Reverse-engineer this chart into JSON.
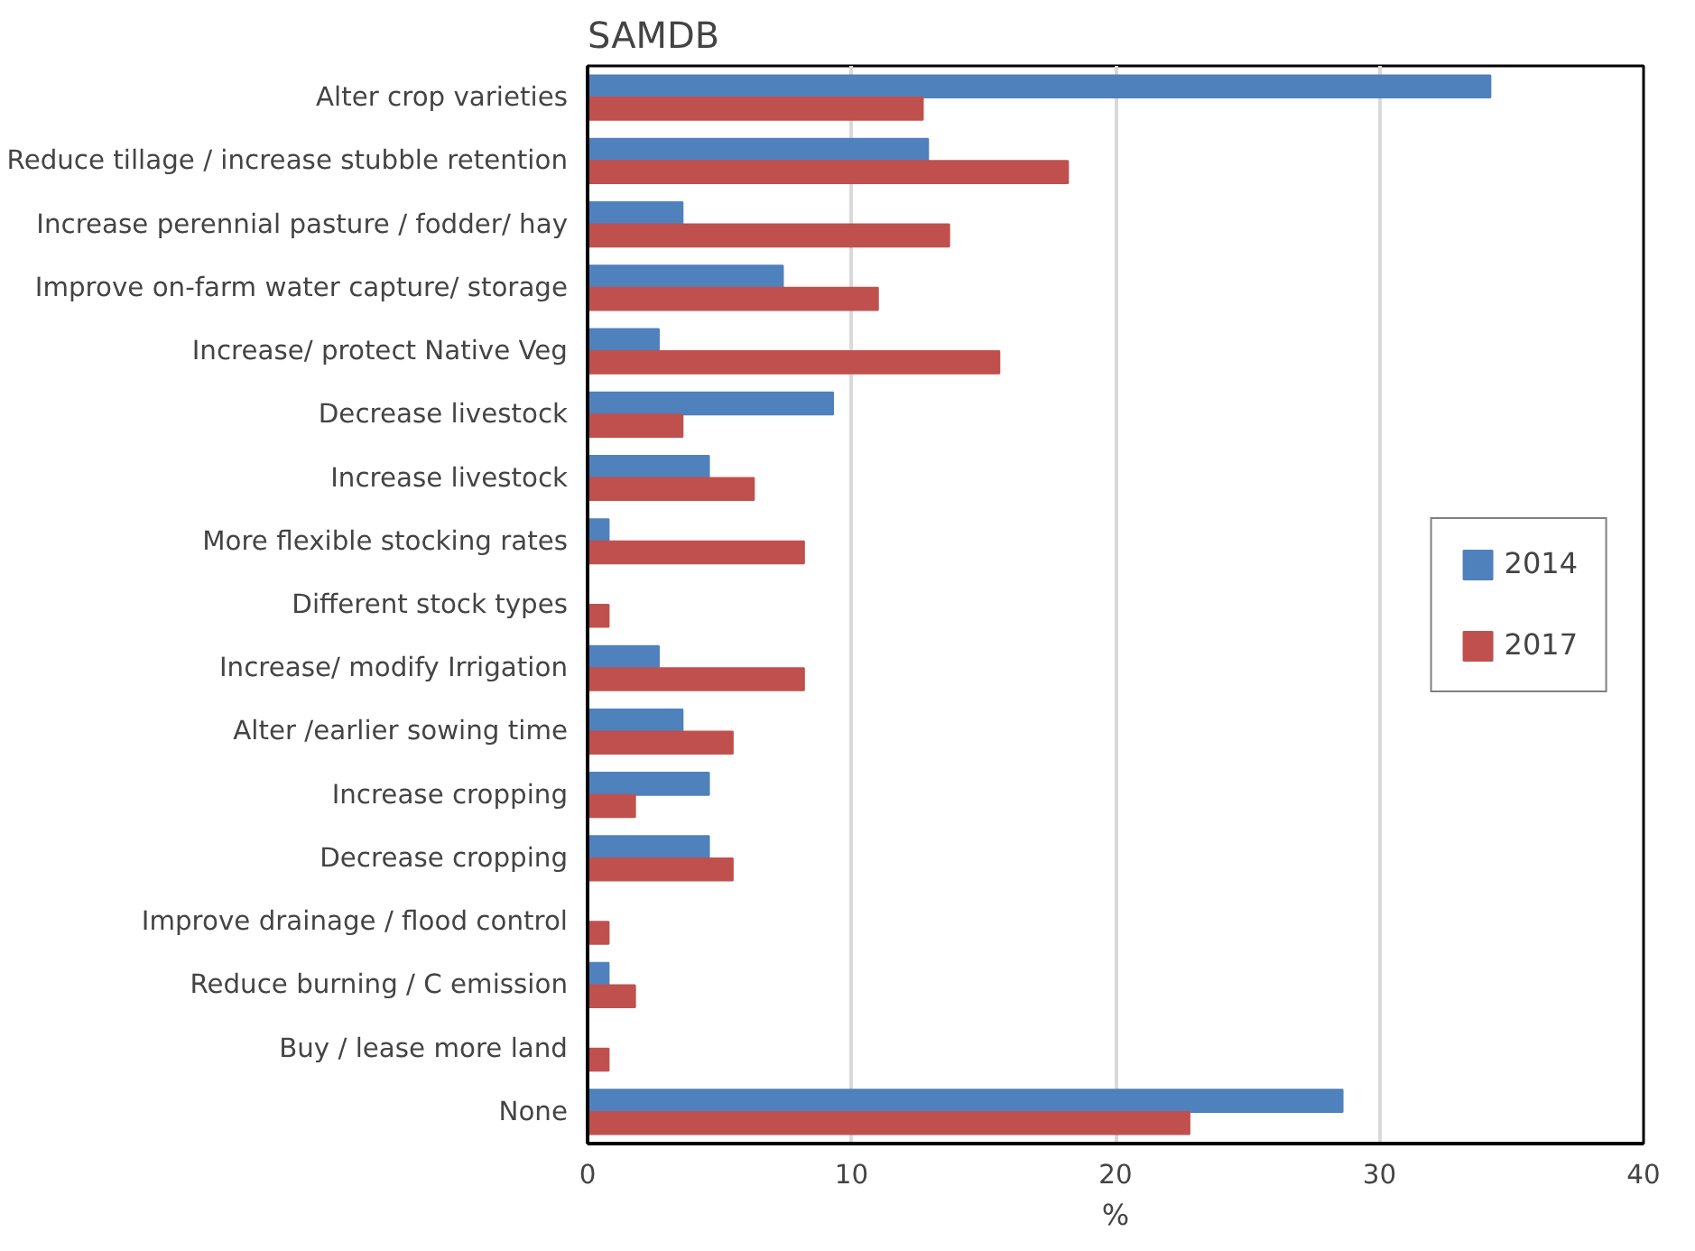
{
  "chart_data": {
    "type": "bar",
    "orientation": "horizontal",
    "title": "SAMDB",
    "xlabel": "%",
    "categories": [
      "Alter crop varieties",
      "Reduce tillage / increase stubble retention",
      "Increase perennial pasture / fodder/ hay",
      "Improve on-farm water capture/ storage",
      "Increase/ protect Native Veg",
      "Decrease livestock",
      "Increase livestock",
      "More flexible stocking rates",
      "Different stock types",
      "Increase/ modify Irrigation",
      "Alter /earlier sowing time",
      "Increase cropping",
      "Decrease cropping",
      "Improve drainage / flood control",
      "Reduce burning / C emission",
      "Buy / lease more land",
      "None"
    ],
    "series": [
      {
        "name": "2014",
        "color": "#4f81bd",
        "values": [
          34.2,
          12.9,
          3.6,
          7.4,
          2.7,
          9.3,
          4.6,
          0.8,
          0,
          2.7,
          3.6,
          4.6,
          4.6,
          0,
          0.8,
          0,
          28.6
        ]
      },
      {
        "name": "2017",
        "color": "#c0504d",
        "values": [
          12.7,
          18.2,
          13.7,
          11.0,
          15.6,
          3.6,
          6.3,
          8.2,
          0.8,
          8.2,
          5.5,
          1.8,
          5.5,
          0.8,
          1.8,
          0.8,
          22.8
        ]
      }
    ],
    "xlim": [
      0,
      40
    ],
    "xticks": [
      0,
      10,
      20,
      30,
      40
    ],
    "grid": "x",
    "legend": "right"
  }
}
